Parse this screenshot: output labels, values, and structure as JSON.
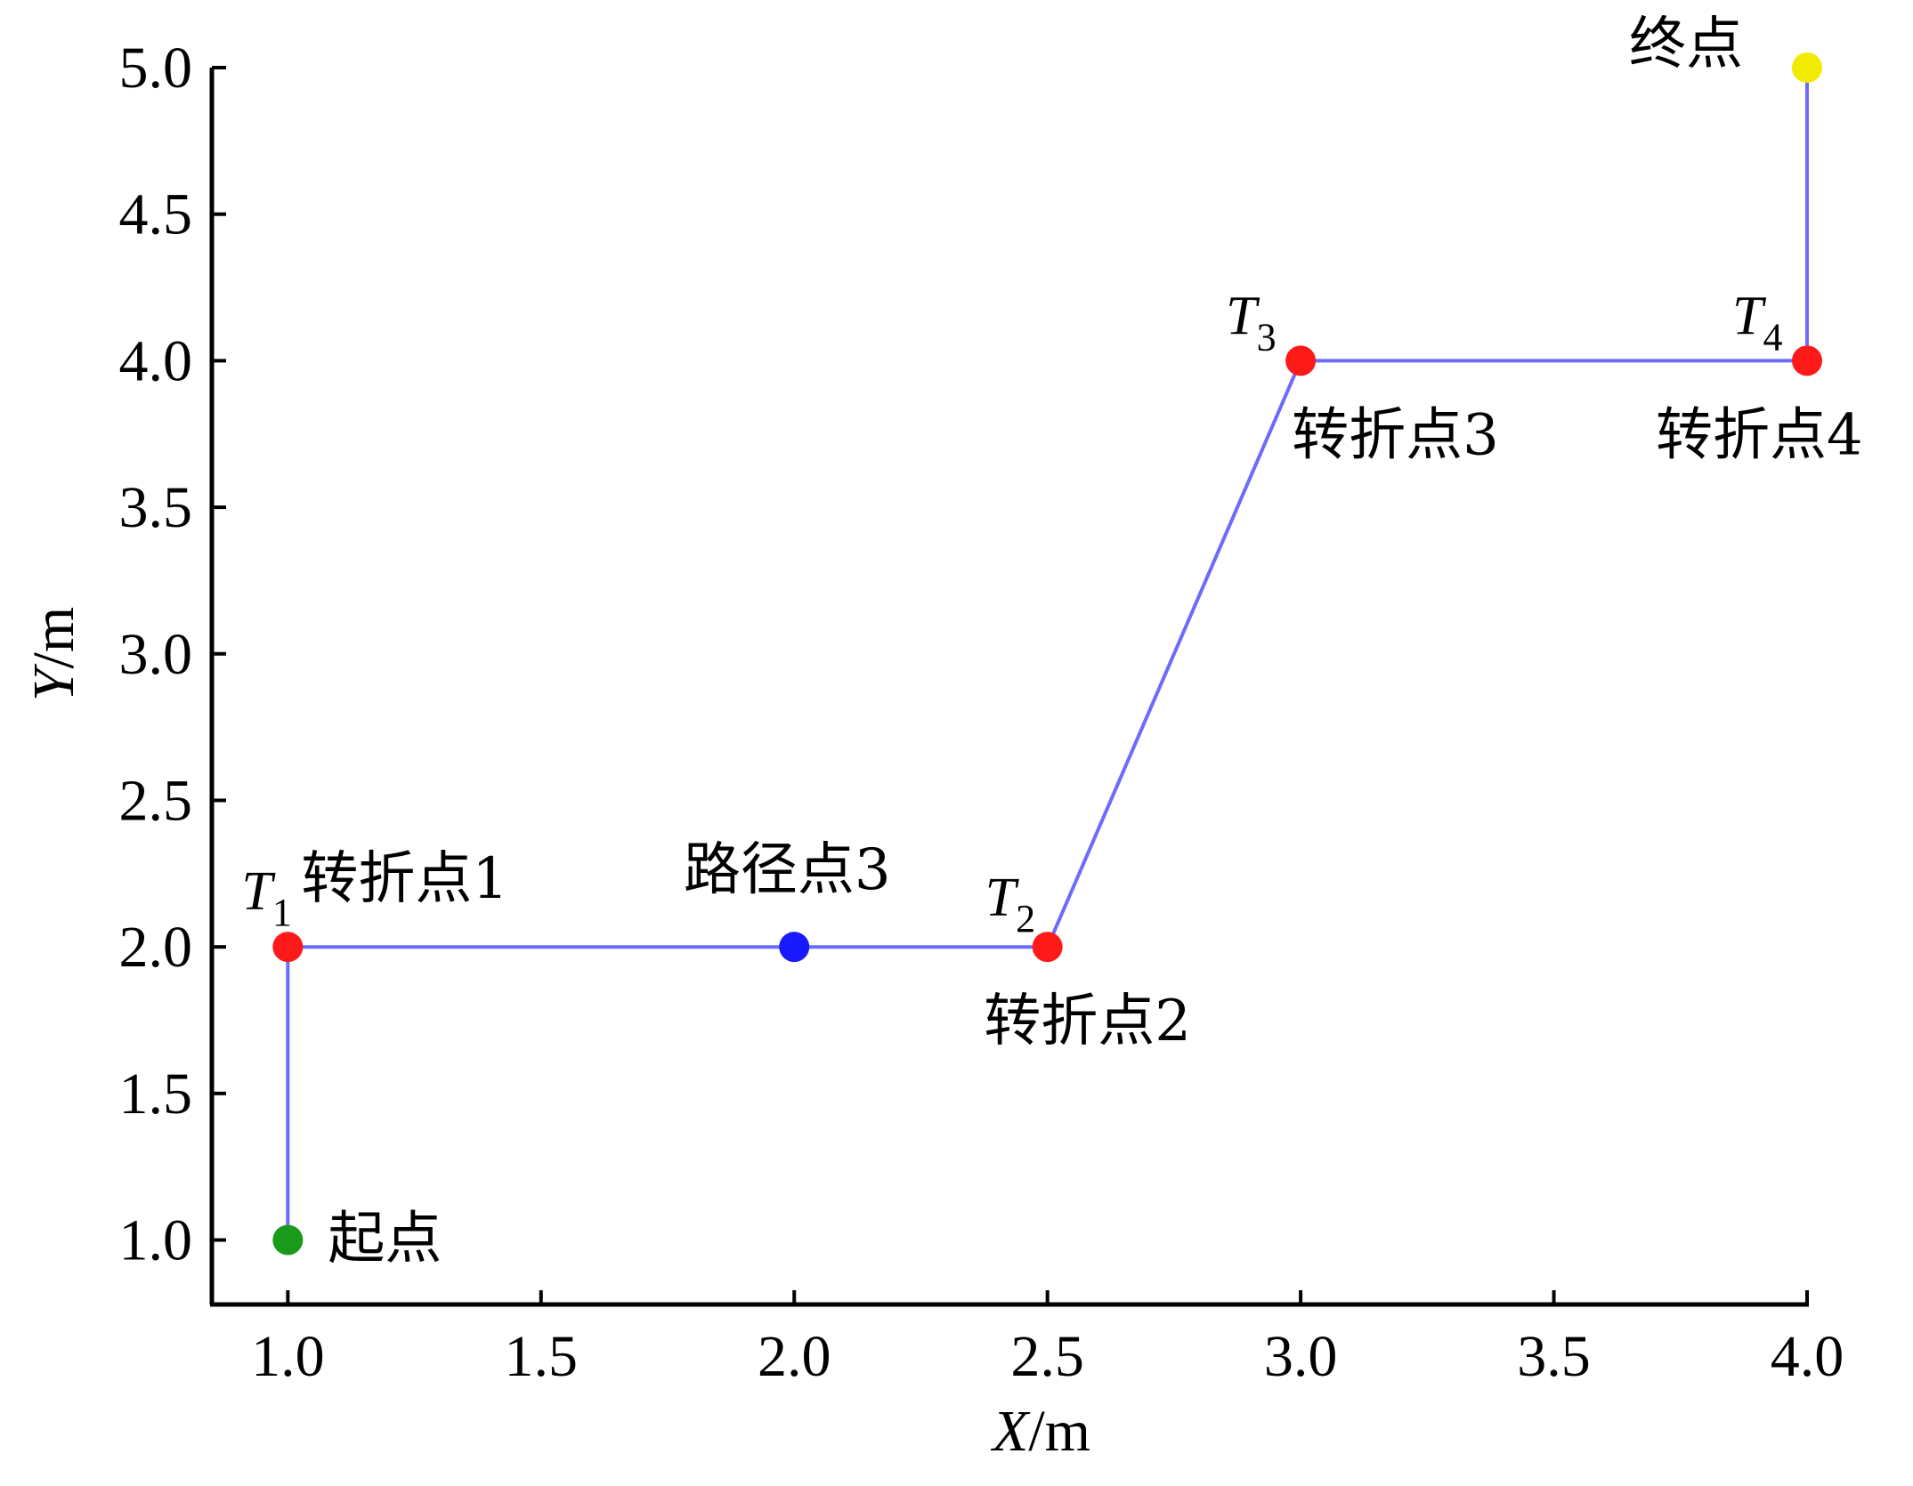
{
  "chart_data": {
    "type": "line",
    "title": "",
    "xlabel": {
      "var": "X",
      "unit": "/m"
    },
    "ylabel": {
      "var": "Y",
      "unit": "/m"
    },
    "xlim": [
      0.85,
      4.0
    ],
    "ylim": [
      0.78,
      5.0
    ],
    "xticks": [
      "1.0",
      "1.5",
      "2.0",
      "2.5",
      "3.0",
      "3.5",
      "4.0"
    ],
    "yticks": [
      "1.0",
      "1.5",
      "2.0",
      "2.5",
      "3.0",
      "3.5",
      "4.0",
      "4.5",
      "5.0"
    ],
    "grid": false,
    "legend": "none",
    "series": [
      {
        "color": "#6b6bff",
        "x": [
          1.0,
          1.0,
          2.5,
          3.0,
          4.0,
          4.0
        ],
        "y": [
          1.0,
          2.0,
          2.0,
          4.0,
          4.0,
          5.0
        ]
      }
    ],
    "points": [
      {
        "id": "start",
        "x": 1.0,
        "y": 1.0,
        "color": "#1a9a1a",
        "label": "起点"
      },
      {
        "id": "t1",
        "x": 1.0,
        "y": 2.0,
        "color": "#ff1a1a",
        "label": "转折点1",
        "tag": "T",
        "sub": "1"
      },
      {
        "id": "p3",
        "x": 2.0,
        "y": 2.0,
        "color": "#1a1aff",
        "label": "路径点3"
      },
      {
        "id": "t2",
        "x": 2.5,
        "y": 2.0,
        "color": "#ff1a1a",
        "label": "转折点2",
        "tag": "T",
        "sub": "2"
      },
      {
        "id": "t3",
        "x": 3.0,
        "y": 4.0,
        "color": "#ff1a1a",
        "label": "转折点3",
        "tag": "T",
        "sub": "3"
      },
      {
        "id": "t4",
        "x": 4.0,
        "y": 4.0,
        "color": "#ff1a1a",
        "label": "转折点4",
        "tag": "T",
        "sub": "4"
      },
      {
        "id": "end",
        "x": 4.0,
        "y": 5.0,
        "color": "#f2ea00",
        "label": "终点"
      }
    ]
  }
}
